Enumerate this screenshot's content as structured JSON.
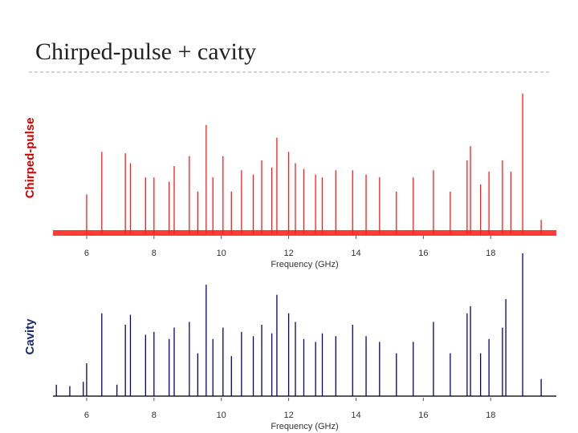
{
  "header": {
    "title": "Chirped-pulse + cavity"
  },
  "chart_data": [
    {
      "type": "stem",
      "ylabel": "Chirped-pulse",
      "xlabel": "Frequency (GHz)",
      "label_color": "#cc0000",
      "xlim": [
        5,
        19.95
      ],
      "ylim": [
        0,
        1
      ],
      "xticks": [
        6,
        8,
        10,
        12,
        14,
        16,
        18
      ],
      "series": [
        {
          "color": "#ff1a1a",
          "x": [
            6.0,
            6.45,
            7.15,
            7.3,
            7.75,
            8.0,
            8.45,
            8.6,
            9.05,
            9.3,
            9.55,
            9.75,
            10.05,
            10.3,
            10.6,
            10.95,
            11.2,
            11.5,
            11.65,
            12.0,
            12.2,
            12.45,
            12.8,
            13.0,
            13.4,
            13.9,
            14.3,
            14.7,
            15.2,
            15.7,
            16.3,
            16.8,
            17.3,
            17.4,
            17.7,
            17.95,
            18.35,
            18.6,
            18.95,
            19.5
          ],
          "values": [
            0.28,
            0.58,
            0.57,
            0.5,
            0.4,
            0.4,
            0.37,
            0.48,
            0.55,
            0.3,
            0.77,
            0.4,
            0.55,
            0.3,
            0.45,
            0.42,
            0.52,
            0.47,
            0.68,
            0.58,
            0.5,
            0.46,
            0.42,
            0.4,
            0.45,
            0.45,
            0.42,
            0.4,
            0.3,
            0.4,
            0.45,
            0.3,
            0.52,
            0.62,
            0.35,
            0.44,
            0.52,
            0.44,
            0.99,
            0.1
          ]
        }
      ]
    },
    {
      "type": "stem",
      "ylabel": "Cavity",
      "xlabel": "Frequency (GHz)",
      "label_color": "#1a2a6c",
      "xlim": [
        5,
        19.95
      ],
      "ylim": [
        0,
        1
      ],
      "xticks": [
        6,
        8,
        10,
        12,
        14,
        16,
        18
      ],
      "series": [
        {
          "color": "#000080",
          "x": [
            5.1,
            5.5,
            5.9,
            6.0,
            6.45,
            6.9,
            7.15,
            7.3,
            7.75,
            8.0,
            8.45,
            8.6,
            9.05,
            9.3,
            9.55,
            9.75,
            10.05,
            10.3,
            10.6,
            10.95,
            11.2,
            11.5,
            11.65,
            12.0,
            12.2,
            12.45,
            12.8,
            13.0,
            13.4,
            13.9,
            14.3,
            14.7,
            15.2,
            15.7,
            16.3,
            16.8,
            17.3,
            17.4,
            17.7,
            17.95,
            18.35,
            18.45,
            18.95,
            19.5
          ],
          "values": [
            0.08,
            0.07,
            0.1,
            0.23,
            0.58,
            0.08,
            0.5,
            0.57,
            0.43,
            0.45,
            0.4,
            0.48,
            0.52,
            0.3,
            0.78,
            0.4,
            0.48,
            0.28,
            0.45,
            0.42,
            0.5,
            0.44,
            0.71,
            0.58,
            0.52,
            0.4,
            0.38,
            0.44,
            0.42,
            0.5,
            0.42,
            0.38,
            0.3,
            0.38,
            0.52,
            0.3,
            0.58,
            0.63,
            0.3,
            0.4,
            0.48,
            0.68,
            1.0,
            0.12
          ]
        }
      ]
    }
  ]
}
